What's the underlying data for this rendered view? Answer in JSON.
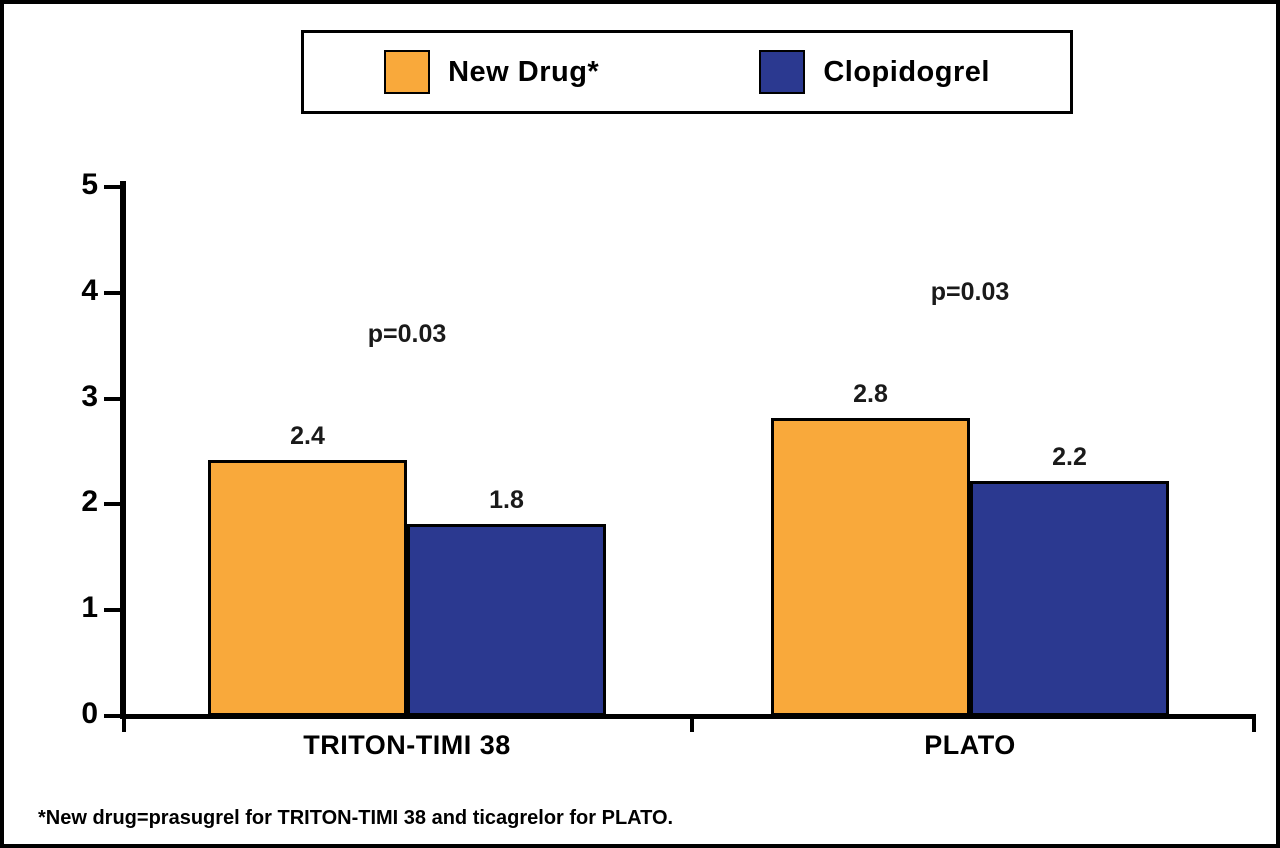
{
  "colors": {
    "new_drug": "#F9A93B",
    "clopidogrel": "#2B3990",
    "outline": "#000000",
    "background": "#FFFFFF"
  },
  "legend": {
    "items": [
      {
        "label": "New Drug*",
        "color": "#F9A93B"
      },
      {
        "label": "Clopidogrel",
        "color": "#2B3990"
      }
    ]
  },
  "footnote": "*New drug=prasugrel for TRITON-TIMI 38 and ticagrelor for PLATO.",
  "chart_data": {
    "type": "bar",
    "categories": [
      "TRITON-TIMI 38",
      "PLATO"
    ],
    "series": [
      {
        "name": "New Drug*",
        "color": "#F9A93B",
        "values": [
          2.4,
          2.8
        ]
      },
      {
        "name": "Clopidogrel",
        "color": "#2B3990",
        "values": [
          1.8,
          2.2
        ]
      }
    ],
    "value_labels": [
      [
        "2.4",
        "2.8"
      ],
      [
        "1.8",
        "2.2"
      ]
    ],
    "annotations": [
      {
        "text": "p=0.03",
        "category": "TRITON-TIMI 38"
      },
      {
        "text": "p=0.03",
        "category": "PLATO"
      }
    ],
    "title": "",
    "xlabel": "",
    "ylabel": "",
    "ylim": [
      0,
      5
    ],
    "yticks": [
      "0",
      "1",
      "2",
      "3",
      "4",
      "5"
    ],
    "grid": false,
    "legend_position": "top-center"
  }
}
